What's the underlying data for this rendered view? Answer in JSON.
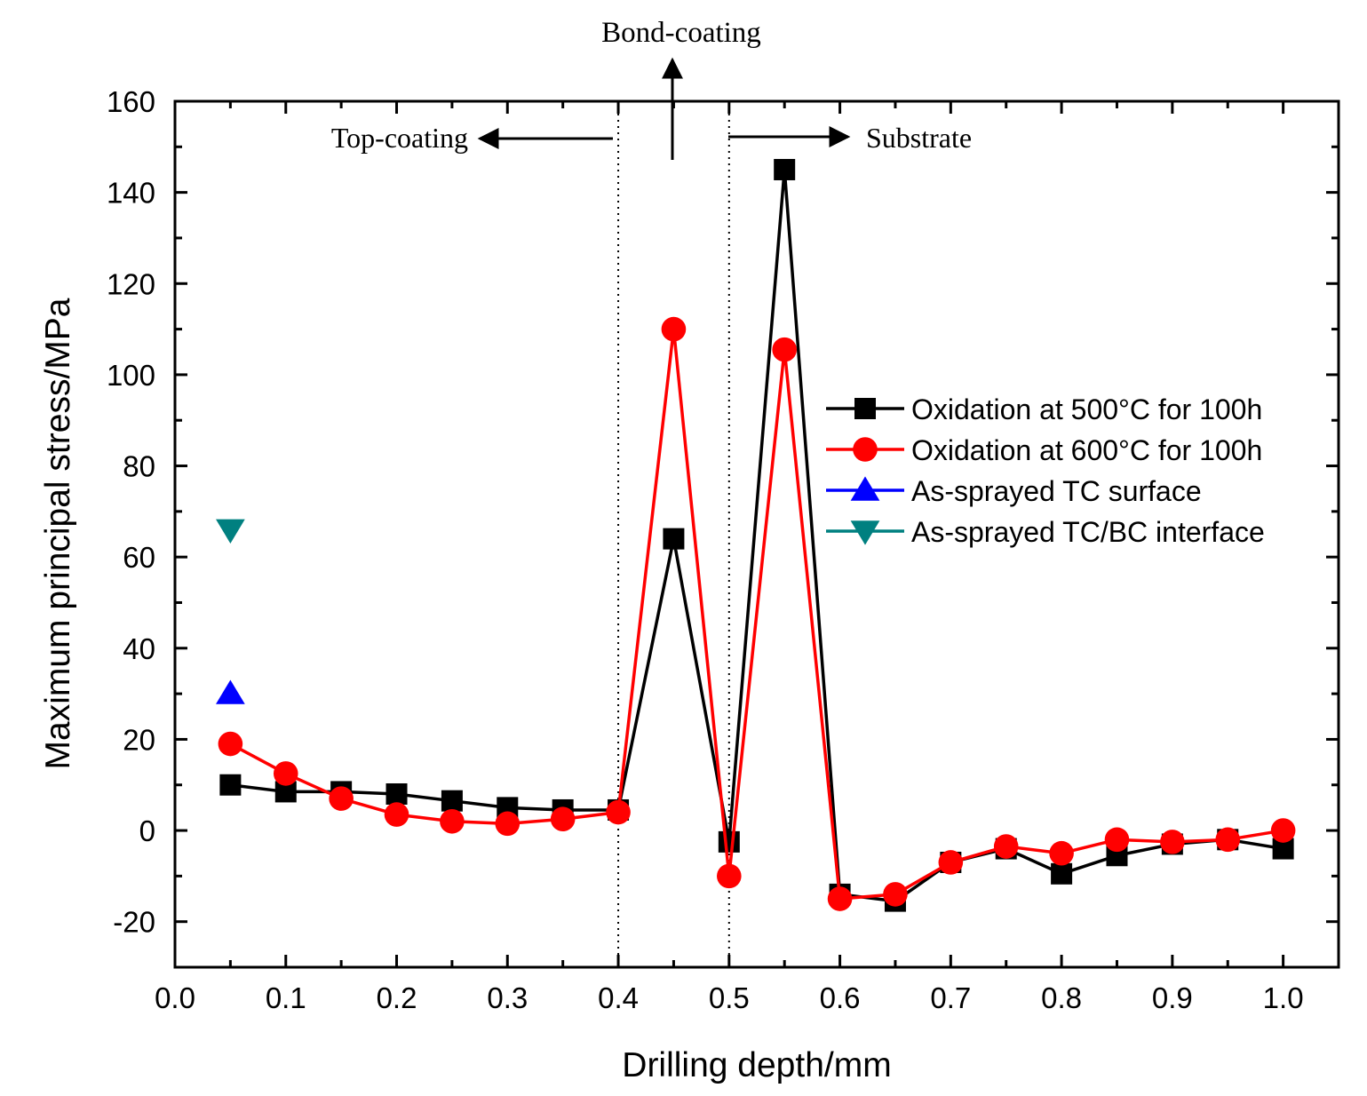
{
  "chart_data": {
    "type": "line",
    "title": "",
    "xlabel": "Drilling depth/mm",
    "ylabel": "Maximum principal stress/MPa",
    "xlim": [
      0.0,
      1.05
    ],
    "ylim": [
      -30,
      160
    ],
    "x_ticks": [
      0.0,
      0.1,
      0.2,
      0.3,
      0.4,
      0.5,
      0.6,
      0.7,
      0.8,
      0.9,
      1.0
    ],
    "x_tick_labels": [
      "0.0",
      "0.1",
      "0.2",
      "0.3",
      "0.4",
      "0.5",
      "0.6",
      "0.7",
      "0.8",
      "0.9",
      "1.0"
    ],
    "y_ticks": [
      -20,
      0,
      20,
      40,
      60,
      80,
      100,
      120,
      140,
      160
    ],
    "y_tick_labels": [
      "-20",
      "0",
      "20",
      "40",
      "60",
      "80",
      "100",
      "120",
      "140",
      "160"
    ],
    "grid": false,
    "legend_position": "right",
    "series": [
      {
        "name": "Oxidation at 500°C for 100h",
        "color": "#000000",
        "marker": "square",
        "line": true,
        "x": [
          0.05,
          0.1,
          0.15,
          0.2,
          0.25,
          0.3,
          0.35,
          0.4,
          0.45,
          0.5,
          0.55,
          0.6,
          0.65,
          0.7,
          0.75,
          0.8,
          0.85,
          0.9,
          0.95,
          1.0
        ],
        "values": [
          10,
          8.5,
          8.5,
          8,
          6.5,
          5,
          4.5,
          4.5,
          64,
          -2.5,
          145,
          -14,
          -15.5,
          -7,
          -4,
          -9.5,
          -5.5,
          -3,
          -2,
          -4
        ]
      },
      {
        "name": "Oxidation at 600°C for 100h",
        "color": "#ff0000",
        "marker": "circle",
        "line": true,
        "x": [
          0.05,
          0.1,
          0.15,
          0.2,
          0.25,
          0.3,
          0.35,
          0.4,
          0.45,
          0.5,
          0.55,
          0.6,
          0.65,
          0.7,
          0.75,
          0.8,
          0.85,
          0.9,
          0.95,
          1.0
        ],
        "values": [
          19,
          12.5,
          7,
          3.5,
          2,
          1.5,
          2.5,
          4,
          110,
          -10,
          105.5,
          -15,
          -14,
          -7,
          -3.5,
          -5,
          -2,
          -2.5,
          -2,
          0
        ]
      },
      {
        "name": "As-sprayed TC surface",
        "color": "#0000ff",
        "marker": "triangle-up",
        "line": false,
        "x": [
          0.05
        ],
        "values": [
          30
        ]
      },
      {
        "name": "As-sprayed TC/BC interface",
        "color": "#008080",
        "marker": "triangle-down",
        "line": false,
        "x": [
          0.05
        ],
        "values": [
          66
        ]
      }
    ],
    "vertical_lines": [
      0.4,
      0.5
    ],
    "annotations": [
      {
        "text": "Bond-coating",
        "x": 0.45,
        "y": 175,
        "arrow": "up"
      },
      {
        "text": "Top-coating",
        "x": 0.2,
        "y": 152,
        "arrow": "left"
      },
      {
        "text": "Substrate",
        "x": 0.62,
        "y": 152,
        "arrow": "right"
      }
    ]
  }
}
